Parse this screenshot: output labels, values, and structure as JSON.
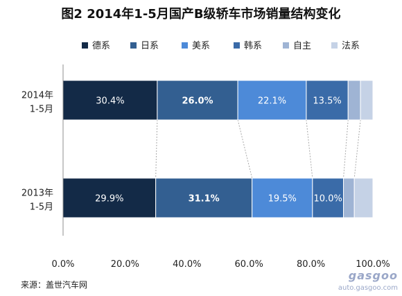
{
  "chart_data": {
    "type": "bar",
    "orientation": "horizontal",
    "stacked": true,
    "title": "图2  2014年1-5月国产B级轿车市场销量结构变化",
    "categories": [
      "2014年1-5月",
      "2013年1-5月"
    ],
    "series": [
      {
        "name": "德系",
        "color": "#132a47",
        "values": [
          30.4,
          29.9
        ],
        "labels": [
          "30.4%",
          "29.9%"
        ],
        "label_bold": [
          false,
          false
        ]
      },
      {
        "name": "日系",
        "color": "#335f91",
        "values": [
          26.0,
          31.1
        ],
        "labels": [
          "26.0%",
          "31.1%"
        ],
        "label_bold": [
          true,
          true
        ]
      },
      {
        "name": "美系",
        "color": "#4d8ad8",
        "values": [
          22.1,
          19.5
        ],
        "labels": [
          "22.1%",
          "19.5%"
        ],
        "label_bold": [
          false,
          false
        ]
      },
      {
        "name": "韩系",
        "color": "#3a6ba8",
        "values": [
          13.5,
          10.0
        ],
        "labels": [
          "13.5%",
          "10.0%"
        ],
        "label_bold": [
          false,
          false
        ]
      },
      {
        "name": "自主",
        "color": "#9fb4d4",
        "values": [
          4.0,
          3.5
        ],
        "labels": [
          "",
          ""
        ],
        "label_bold": [
          false,
          false
        ]
      },
      {
        "name": "法系",
        "color": "#c5d2e6",
        "values": [
          4.0,
          6.0
        ],
        "labels": [
          "",
          ""
        ],
        "label_bold": [
          false,
          false
        ]
      }
    ],
    "xlim": [
      0,
      100
    ],
    "xticks": [
      "0.0%",
      "20.0%",
      "40.0%",
      "60.0%",
      "80.0%",
      "100.0%"
    ],
    "legend_position": "top",
    "grid": false,
    "connector_lines": true
  },
  "source": "来源：盖世汽车网",
  "watermark": {
    "logo": "gasgoo",
    "url": "auto.gasgoo.com"
  }
}
